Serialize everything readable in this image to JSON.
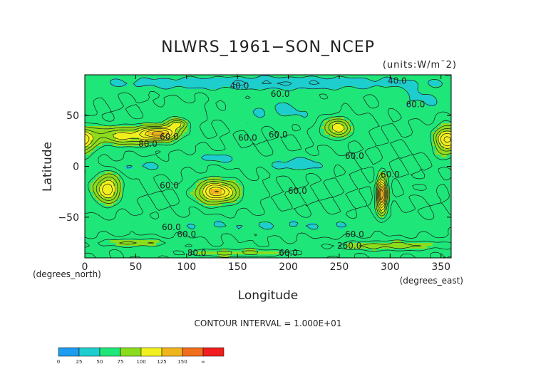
{
  "chart_data": {
    "type": "heatmap",
    "title": "NLWRS_1961−SON_NCEP",
    "units": "(units:W/m¯2)",
    "xlabel": "Longitude",
    "ylabel": "Latitude",
    "x_axis_note": "(degrees_north)",
    "x_axis_unit": "(degrees_east)",
    "contour_interval": "CONTOUR INTERVAL = 1.000E+01",
    "xlim": [
      0,
      360
    ],
    "ylim": [
      -90,
      90
    ],
    "x_ticks": [
      0,
      50,
      100,
      150,
      200,
      250,
      300,
      350
    ],
    "x_tick_labels": [
      "0",
      "50",
      "100",
      "150",
      "200",
      "250",
      "300",
      "350"
    ],
    "y_ticks": [
      -50,
      0,
      50
    ],
    "y_tick_labels": [
      "−50",
      "0",
      "50"
    ],
    "base_value": 60,
    "features": [
      {
        "lon": 130,
        "lat": -25,
        "rlon": 20,
        "rlat": 11,
        "peak": 130
      },
      {
        "lon": 22,
        "lat": -22,
        "rlon": 13,
        "rlat": 14,
        "peak": 118
      },
      {
        "lon": 292,
        "lat": -28,
        "rlon": 5,
        "rlat": 17,
        "peak": 148
      },
      {
        "lon": 248,
        "lat": 38,
        "rlon": 14,
        "rlat": 10,
        "peak": 108
      },
      {
        "lon": 40,
        "lat": 30,
        "rlon": 38,
        "rlat": 9,
        "peak": 104
      },
      {
        "lon": 75,
        "lat": 33,
        "rlon": 18,
        "rlat": 7,
        "peak": 118
      },
      {
        "lon": 92,
        "lat": 42,
        "rlon": 10,
        "rlat": 5,
        "peak": 100
      },
      {
        "lon": 356,
        "lat": 25,
        "rlon": 12,
        "rlat": 14,
        "peak": 114
      },
      {
        "lon": 330,
        "lat": -20,
        "rlon": 10,
        "rlat": 6,
        "peak": 75
      },
      {
        "lon": 95,
        "lat": 55,
        "rlon": 25,
        "rlat": 7,
        "peak": 68
      },
      {
        "lon": 50,
        "lat": -75,
        "rlon": 35,
        "rlat": 4,
        "peak": 82
      },
      {
        "lon": 300,
        "lat": -78,
        "rlon": 60,
        "rlat": 5,
        "peak": 86
      },
      {
        "lon": 150,
        "lat": -85,
        "rlon": 60,
        "rlat": 4,
        "peak": 84
      },
      {
        "lon": 210,
        "lat": 2,
        "rlon": 28,
        "rlat": 7,
        "peak": 42
      },
      {
        "lon": 130,
        "lat": 8,
        "rlon": 25,
        "rlat": 5,
        "peak": 45
      },
      {
        "lon": 55,
        "lat": 0,
        "rlon": 30,
        "rlat": 6,
        "peak": 48
      },
      {
        "lon": 195,
        "lat": 55,
        "rlon": 50,
        "rlat": 12,
        "peak": 48
      },
      {
        "lon": 180,
        "lat": 82,
        "rlon": 180,
        "rlat": 7,
        "peak": 40
      },
      {
        "lon": 180,
        "lat": -58,
        "rlon": 180,
        "rlat": 7,
        "peak": 50
      },
      {
        "lon": 330,
        "lat": 65,
        "rlon": 25,
        "rlat": 12,
        "peak": 48
      }
    ],
    "contour_labels": [
      {
        "text": "40.0",
        "lon": 152,
        "lat": 79
      },
      {
        "text": "40.0",
        "lon": 307,
        "lat": 84
      },
      {
        "text": "60.0",
        "lon": 192,
        "lat": 71
      },
      {
        "text": "60.0",
        "lon": 325,
        "lat": 61
      },
      {
        "text": "60.0",
        "lon": 190,
        "lat": 31
      },
      {
        "text": "60.0",
        "lon": 160,
        "lat": 28
      },
      {
        "text": "60.0",
        "lon": 83,
        "lat": 29
      },
      {
        "text": "80.0",
        "lon": 62,
        "lat": 22
      },
      {
        "text": "60.0",
        "lon": 265,
        "lat": 10
      },
      {
        "text": "60.0",
        "lon": 300,
        "lat": -8
      },
      {
        "text": "60.0",
        "lon": 83,
        "lat": -19
      },
      {
        "text": "60.0",
        "lon": 209,
        "lat": -24
      },
      {
        "text": "60.0",
        "lon": 85,
        "lat": -60
      },
      {
        "text": "60.0",
        "lon": 100,
        "lat": -67
      },
      {
        "text": "60.0",
        "lon": 265,
        "lat": -67
      },
      {
        "text": "80.0",
        "lon": 110,
        "lat": -85
      },
      {
        "text": "60.0",
        "lon": 200,
        "lat": -85
      },
      {
        "text": "260.0",
        "lon": 260,
        "lat": -78
      }
    ],
    "colorbar": {
      "colors": [
        "#1e9cf0",
        "#1ecdcd",
        "#1ee678",
        "#8cdc1e",
        "#f0f01e",
        "#f0b41e",
        "#f06e1e",
        "#f01e1e"
      ],
      "labels": [
        "0",
        "25",
        "50",
        "75",
        "100",
        "125",
        "150",
        "∞"
      ],
      "bounds": [
        0,
        25,
        50,
        75,
        100,
        125,
        150,
        175
      ]
    }
  }
}
